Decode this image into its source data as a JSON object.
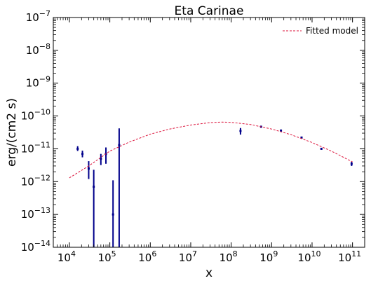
{
  "chart_data": {
    "type": "scatter",
    "title": "Eta Carinae",
    "xlabel": "x",
    "ylabel": "erg/(cm2 s)",
    "xscale": "log",
    "yscale": "log",
    "xlim": [
      4000,
      200000000000
    ],
    "ylim": [
      1e-14,
      1e-07
    ],
    "x_ticks": [
      {
        "value": 10000,
        "base": "10",
        "exp": "4"
      },
      {
        "value": 100000,
        "base": "10",
        "exp": "5"
      },
      {
        "value": 1000000,
        "base": "10",
        "exp": "6"
      },
      {
        "value": 10000000,
        "base": "10",
        "exp": "7"
      },
      {
        "value": 100000000,
        "base": "10",
        "exp": "8"
      },
      {
        "value": 1000000000,
        "base": "10",
        "exp": "9"
      },
      {
        "value": 10000000000,
        "base": "10",
        "exp": "10"
      },
      {
        "value": 100000000000,
        "base": "10",
        "exp": "11"
      }
    ],
    "y_ticks": [
      {
        "value": 1e-14,
        "base": "10",
        "exp": "−14"
      },
      {
        "value": 1e-13,
        "base": "10",
        "exp": "−13"
      },
      {
        "value": 1e-12,
        "base": "10",
        "exp": "−12"
      },
      {
        "value": 1e-11,
        "base": "10",
        "exp": "−11"
      },
      {
        "value": 1e-10,
        "base": "10",
        "exp": "−10"
      },
      {
        "value": 1e-09,
        "base": "10",
        "exp": "−9"
      },
      {
        "value": 1e-08,
        "base": "10",
        "exp": "−8"
      },
      {
        "value": 1e-07,
        "base": "10",
        "exp": "−7"
      }
    ],
    "legend": {
      "position": "top-right",
      "entries": [
        "Fitted model"
      ]
    },
    "grid": false,
    "series": [
      {
        "kind": "errorbar",
        "color": "#00008b",
        "points": [
          {
            "x": 16000,
            "y": 1e-11,
            "ylo": 8.6e-12,
            "yhi": 1.2e-11
          },
          {
            "x": 21000,
            "y": 7e-12,
            "ylo": 5.5e-12,
            "yhi": 8.8e-12
          },
          {
            "x": 30000,
            "y": 2.5e-12,
            "ylo": 1.2e-12,
            "yhi": 4.2e-12
          },
          {
            "x": 40000,
            "y": 7e-13,
            "ylo": 1e-14,
            "yhi": 2.3e-12
          },
          {
            "x": 60000,
            "y": 5e-12,
            "ylo": 3.2e-12,
            "yhi": 7e-12
          },
          {
            "x": 80000,
            "y": 7e-12,
            "ylo": 3.5e-12,
            "yhi": 1.1e-11
          },
          {
            "x": 120000,
            "y": 1e-13,
            "ylo": 1e-14,
            "yhi": 1.1e-12
          },
          {
            "x": 170000,
            "y": 1.3e-11,
            "ylo": 1e-14,
            "yhi": 4.2e-11
          },
          {
            "x": 170000000,
            "y": 3.5e-11,
            "ylo": 2.7e-11,
            "yhi": 4.3e-11
          },
          {
            "x": 550000000,
            "y": 4.7e-11,
            "ylo": 4.4e-11,
            "yhi": 5e-11
          },
          {
            "x": 1700000000,
            "y": 3.6e-11,
            "ylo": 3.4e-11,
            "yhi": 3.8e-11
          },
          {
            "x": 5500000000,
            "y": 2.2e-11,
            "ylo": 2.1e-11,
            "yhi": 2.3e-11
          },
          {
            "x": 17000000000,
            "y": 1e-11,
            "ylo": 9.4e-12,
            "yhi": 1.07e-11
          },
          {
            "x": 95000000000,
            "y": 3.5e-12,
            "ylo": 3e-12,
            "yhi": 4e-12
          }
        ]
      },
      {
        "name": "Fitted model",
        "kind": "line",
        "style": "dashed",
        "color": "#dc143c",
        "x": [
          10000,
          30000,
          100000,
          300000,
          1000000,
          3000000,
          10000000,
          30000000,
          60000000,
          100000000,
          300000000,
          1000000000,
          3000000000,
          10000000000,
          30000000000,
          100000000000
        ],
        "y": [
          1.3e-12,
          3e-12,
          8.5e-12,
          1.6e-11,
          2.8e-11,
          4e-11,
          5.3e-11,
          6.3e-11,
          6.5e-11,
          6.4e-11,
          5.5e-11,
          4e-11,
          2.7e-11,
          1.55e-11,
          8.5e-12,
          4e-12
        ]
      }
    ]
  }
}
